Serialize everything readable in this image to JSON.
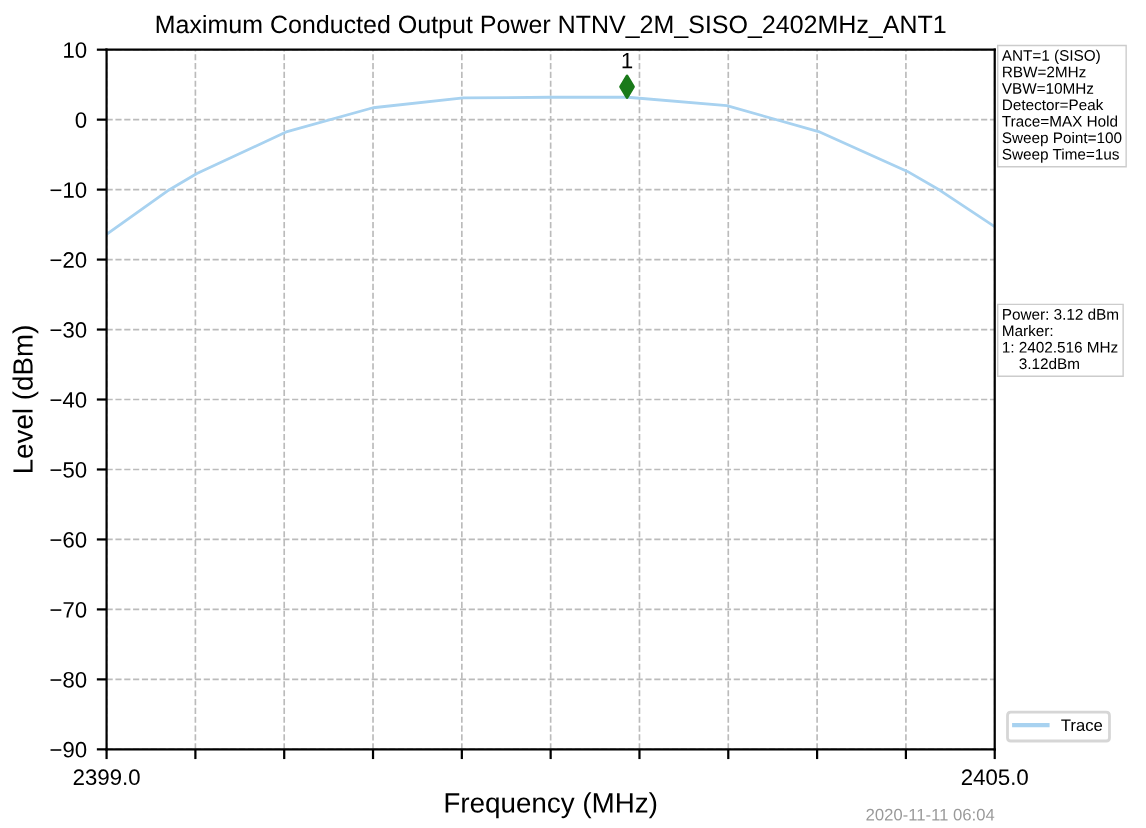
{
  "chart_data": {
    "type": "line",
    "title": "Maximum Conducted Output Power NTNV_2M_SISO_2402MHz_ANT1",
    "xlabel": "Frequency (MHz)",
    "ylabel": "Level (dBm)",
    "series": [
      {
        "name": "Trace",
        "color": "#a8d2f0",
        "x": [
          2399.0,
          2399.41,
          2399.61,
          2400.22,
          2400.8,
          2401.41,
          2402.0,
          2402.52,
          2403.19,
          2403.81,
          2404.41,
          2404.63,
          2405.0
        ],
        "values": [
          -16.4,
          -10.2,
          -7.7,
          -1.7,
          1.7,
          3.1,
          3.2,
          3.2,
          2.0,
          -1.7,
          -7.4,
          -10.1,
          -15.3
        ]
      },
      {
        "type": "scatter",
        "color": "#1a7a1a",
        "marker": "diamond",
        "x": [
          2402.516
        ],
        "values": [
          4.7
        ]
      }
    ],
    "xlim": [
      2399.0,
      2405.0
    ],
    "ylim": [
      -90,
      10
    ],
    "xticks": [
      {
        "value": 2399.0,
        "label": "2399.0"
      },
      {
        "value": 2399.6,
        "label": null
      },
      {
        "value": 2400.2,
        "label": null
      },
      {
        "value": 2400.8,
        "label": null
      },
      {
        "value": 2401.4,
        "label": null
      },
      {
        "value": 2402.0,
        "label": null
      },
      {
        "value": 2402.6,
        "label": null
      },
      {
        "value": 2403.2,
        "label": null
      },
      {
        "value": 2403.8,
        "label": null
      },
      {
        "value": 2404.4,
        "label": null
      },
      {
        "value": 2405.0,
        "label": "2405.0"
      }
    ],
    "yticks": [
      10,
      0,
      -10,
      -20,
      -30,
      -40,
      -50,
      -60,
      -70,
      -80,
      -90
    ],
    "grid": true,
    "legend": "bottom right",
    "marker": "none",
    "line_style": "solid",
    "annotations": [
      {
        "text": "1",
        "x": 2402.516,
        "y": 4.7
      },
      "ANT=1 (SISO)\nRBW=2MHz\nVBW=10MHz\nDetector=Peak\nTrace=MAX Hold\nSweep Point=100\nSweep Time=1us",
      "Power: 3.12 dBm\nMarker:\n1: 2402.516 MHz\n    3.12dBm",
      "2020-11-11 06:04"
    ]
  }
}
